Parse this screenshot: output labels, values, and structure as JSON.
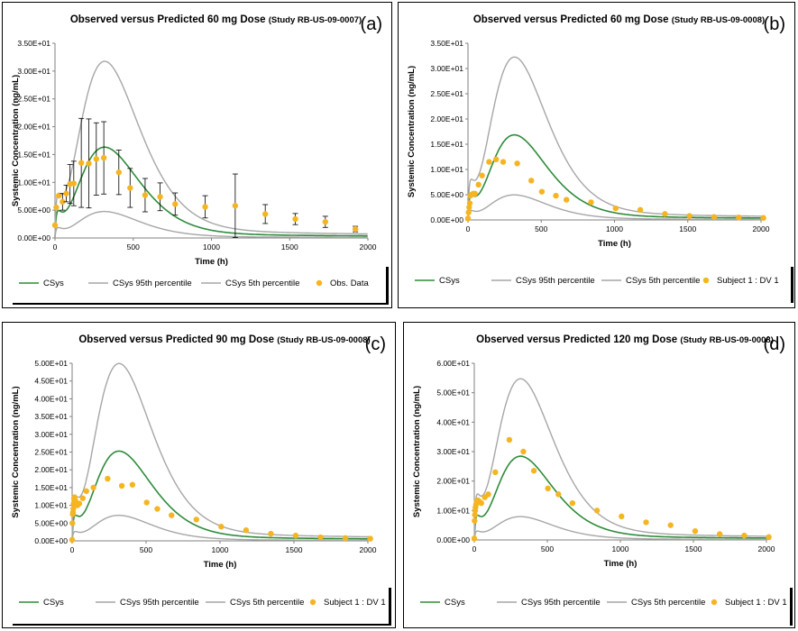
{
  "colors": {
    "csys": "#2e8b3a",
    "percentile": "#a6a6a6",
    "obs": "#f5b521",
    "axis": "#808080",
    "text": "#000000"
  },
  "chart_data": [
    {
      "type": "line",
      "panel_letter": "(a)",
      "title": "Observed versus Predicted 60 mg Dose",
      "title_suffix": "(Study RB-US-09-0007)",
      "xlabel": "Time (h)",
      "ylabel": "Systemic Concentration (ng/mL)",
      "xlim": [
        0,
        2000
      ],
      "ylim": [
        0,
        35
      ],
      "x_ticks": [
        0,
        500,
        1000,
        1500,
        2000
      ],
      "y_ticks": [
        0,
        5,
        10,
        15,
        20,
        25,
        30,
        35
      ],
      "y_tick_labels": [
        "0.00E+00",
        "5.00E+00",
        "1.00E+01",
        "1.50E+01",
        "2.00E+01",
        "2.50E+01",
        "3.00E+01",
        "3.50E+01"
      ],
      "series": [
        {
          "name": "CSys",
          "role": "median",
          "peak": 15.5,
          "shoulder": 6.5
        },
        {
          "name": "CSys 95th percentile",
          "role": "p95",
          "peak": 30.2,
          "shoulder": 10.5
        },
        {
          "name": "CSys 5th percentile",
          "role": "p5",
          "peak": 4.5,
          "shoulder": 2.5
        },
        {
          "name": "Obs. Data",
          "role": "obs",
          "errorbars": true,
          "x": [
            0,
            8,
            24,
            48,
            72,
            96,
            120,
            168,
            216,
            264,
            312,
            408,
            480,
            576,
            672,
            768,
            960,
            1152,
            1344,
            1536,
            1728,
            1920
          ],
          "y": [
            2.3,
            5.5,
            7.6,
            6.5,
            8.0,
            9.7,
            9.8,
            13.5,
            13.4,
            14.2,
            14.4,
            11.8,
            9.0,
            7.7,
            7.4,
            6.1,
            5.6,
            5.8,
            4.3,
            3.4,
            2.9,
            1.6
          ],
          "err": [
            0,
            0,
            0,
            1.5,
            1.5,
            3.5,
            4.0,
            8.0,
            8.0,
            6.5,
            6.5,
            4.0,
            3.5,
            3.0,
            2.5,
            2.0,
            2.0,
            5.7,
            1.7,
            1.0,
            1.0,
            0.5
          ]
        }
      ]
    },
    {
      "type": "line",
      "panel_letter": "(b)",
      "title": "Observed versus Predicted 60 mg Dose",
      "title_suffix": "(Study RB-US-09-0008)",
      "xlabel": "Time (h)",
      "ylabel": "Systemic Concentration (ng/mL)",
      "xlim": [
        0,
        2000
      ],
      "ylim": [
        0,
        35
      ],
      "x_ticks": [
        0,
        500,
        1000,
        1500,
        2000
      ],
      "y_ticks": [
        0,
        5,
        10,
        15,
        20,
        25,
        30,
        35
      ],
      "y_tick_labels": [
        "0.00E+00",
        "5.00E+00",
        "1.00E+01",
        "1.50E+01",
        "2.00E+01",
        "2.50E+01",
        "3.00E+01",
        "3.50E+01"
      ],
      "series": [
        {
          "name": "CSys",
          "role": "median",
          "peak": 16.0,
          "shoulder": 6.5
        },
        {
          "name": "CSys 95th percentile",
          "role": "p95",
          "peak": 30.7,
          "shoulder": 10.5
        },
        {
          "name": "CSys 5th percentile",
          "role": "p5",
          "peak": 4.7,
          "shoulder": 2.5
        },
        {
          "name": "Subject 1 : DV 1",
          "role": "obs",
          "errorbars": false,
          "x": [
            0,
            4,
            8,
            12,
            16,
            24,
            36,
            48,
            72,
            96,
            144,
            192,
            240,
            336,
            432,
            504,
            600,
            672,
            840,
            1008,
            1176,
            1344,
            1512,
            1680,
            1848,
            2016
          ],
          "y": [
            0.3,
            1.5,
            2.5,
            3.3,
            4.8,
            5.0,
            5.2,
            5.2,
            7.0,
            8.8,
            11.5,
            12.0,
            11.5,
            11.2,
            7.8,
            5.6,
            4.8,
            4.0,
            3.5,
            2.3,
            2.0,
            1.2,
            0.8,
            0.6,
            0.5,
            0.4
          ]
        }
      ]
    },
    {
      "type": "line",
      "panel_letter": "(c)",
      "title": "Observed versus Predicted 90 mg Dose",
      "title_suffix": "(Study RB-US-09-0008)",
      "xlabel": "Time (h)",
      "ylabel": "Systemic Concentration (ng/mL)",
      "xlim": [
        0,
        2000
      ],
      "ylim": [
        0,
        50
      ],
      "x_ticks": [
        0,
        500,
        1000,
        1500,
        2000
      ],
      "y_ticks": [
        0,
        5,
        10,
        15,
        20,
        25,
        30,
        35,
        40,
        45,
        50
      ],
      "y_tick_labels": [
        "0.00E+00",
        "5.00E+00",
        "1.00E+01",
        "1.50E+01",
        "2.00E+01",
        "2.50E+01",
        "3.00E+01",
        "3.50E+01",
        "4.00E+01",
        "4.50E+01",
        "5.00E+01"
      ],
      "series": [
        {
          "name": "CSys",
          "role": "median",
          "peak": 24.0,
          "shoulder": 9.5
        },
        {
          "name": "CSys 95th percentile",
          "role": "p95",
          "peak": 47.5,
          "shoulder": 16.5
        },
        {
          "name": "CSys 5th percentile",
          "role": "p5",
          "peak": 6.8,
          "shoulder": 3.5
        },
        {
          "name": "Subject 1 : DV 1",
          "role": "obs",
          "errorbars": false,
          "x": [
            0,
            2,
            4,
            6,
            8,
            10,
            12,
            16,
            20,
            24,
            36,
            48,
            72,
            96,
            144,
            240,
            336,
            408,
            504,
            576,
            672,
            840,
            1008,
            1176,
            1344,
            1512,
            1680,
            1848,
            2016
          ],
          "y": [
            0.3,
            5.0,
            7.5,
            8.0,
            9.0,
            10.5,
            12.0,
            12.3,
            11.5,
            11.0,
            10.0,
            10.5,
            12.0,
            14.0,
            15.0,
            17.5,
            15.5,
            15.8,
            10.8,
            9.0,
            7.2,
            6.0,
            4.0,
            3.0,
            2.0,
            1.5,
            1.0,
            0.8,
            0.6
          ]
        }
      ]
    },
    {
      "type": "line",
      "panel_letter": "(d)",
      "title": "Observed versus Predicted 120 mg Dose",
      "title_suffix": "(Study RB-US-09-0008)",
      "xlabel": "Time (h)",
      "ylabel": "Systemic Concentration (ng/mL)",
      "xlim": [
        0,
        2000
      ],
      "ylim": [
        0,
        60
      ],
      "x_ticks": [
        0,
        500,
        1000,
        1500,
        2000
      ],
      "y_ticks": [
        0,
        10,
        20,
        30,
        40,
        50,
        60
      ],
      "y_tick_labels": [
        "0.00E+00",
        "1.00E+01",
        "2.00E+01",
        "3.00E+01",
        "4.00E+01",
        "5.00E+01",
        "6.00E+01"
      ],
      "series": [
        {
          "name": "CSys",
          "role": "median",
          "peak": 27.0,
          "shoulder": 11.0
        },
        {
          "name": "CSys 95th percentile",
          "role": "p95",
          "peak": 52.0,
          "shoulder": 20.5
        },
        {
          "name": "CSys 5th percentile",
          "role": "p5",
          "peak": 7.5,
          "shoulder": 4.0
        },
        {
          "name": "Subject 1 : DV 1",
          "role": "obs",
          "errorbars": false,
          "x": [
            0,
            2,
            4,
            6,
            8,
            12,
            16,
            24,
            36,
            48,
            72,
            96,
            144,
            240,
            336,
            408,
            504,
            576,
            672,
            840,
            1008,
            1176,
            1344,
            1512,
            1680,
            1848,
            2016
          ],
          "y": [
            0.5,
            6.5,
            8.5,
            10.0,
            11.0,
            12.0,
            13.0,
            13.5,
            13.0,
            12.5,
            14.5,
            15.5,
            23.0,
            34.0,
            30.0,
            23.5,
            17.5,
            15.5,
            12.5,
            10.0,
            8.0,
            6.0,
            5.0,
            3.0,
            2.0,
            1.5,
            1.0
          ]
        }
      ]
    }
  ]
}
